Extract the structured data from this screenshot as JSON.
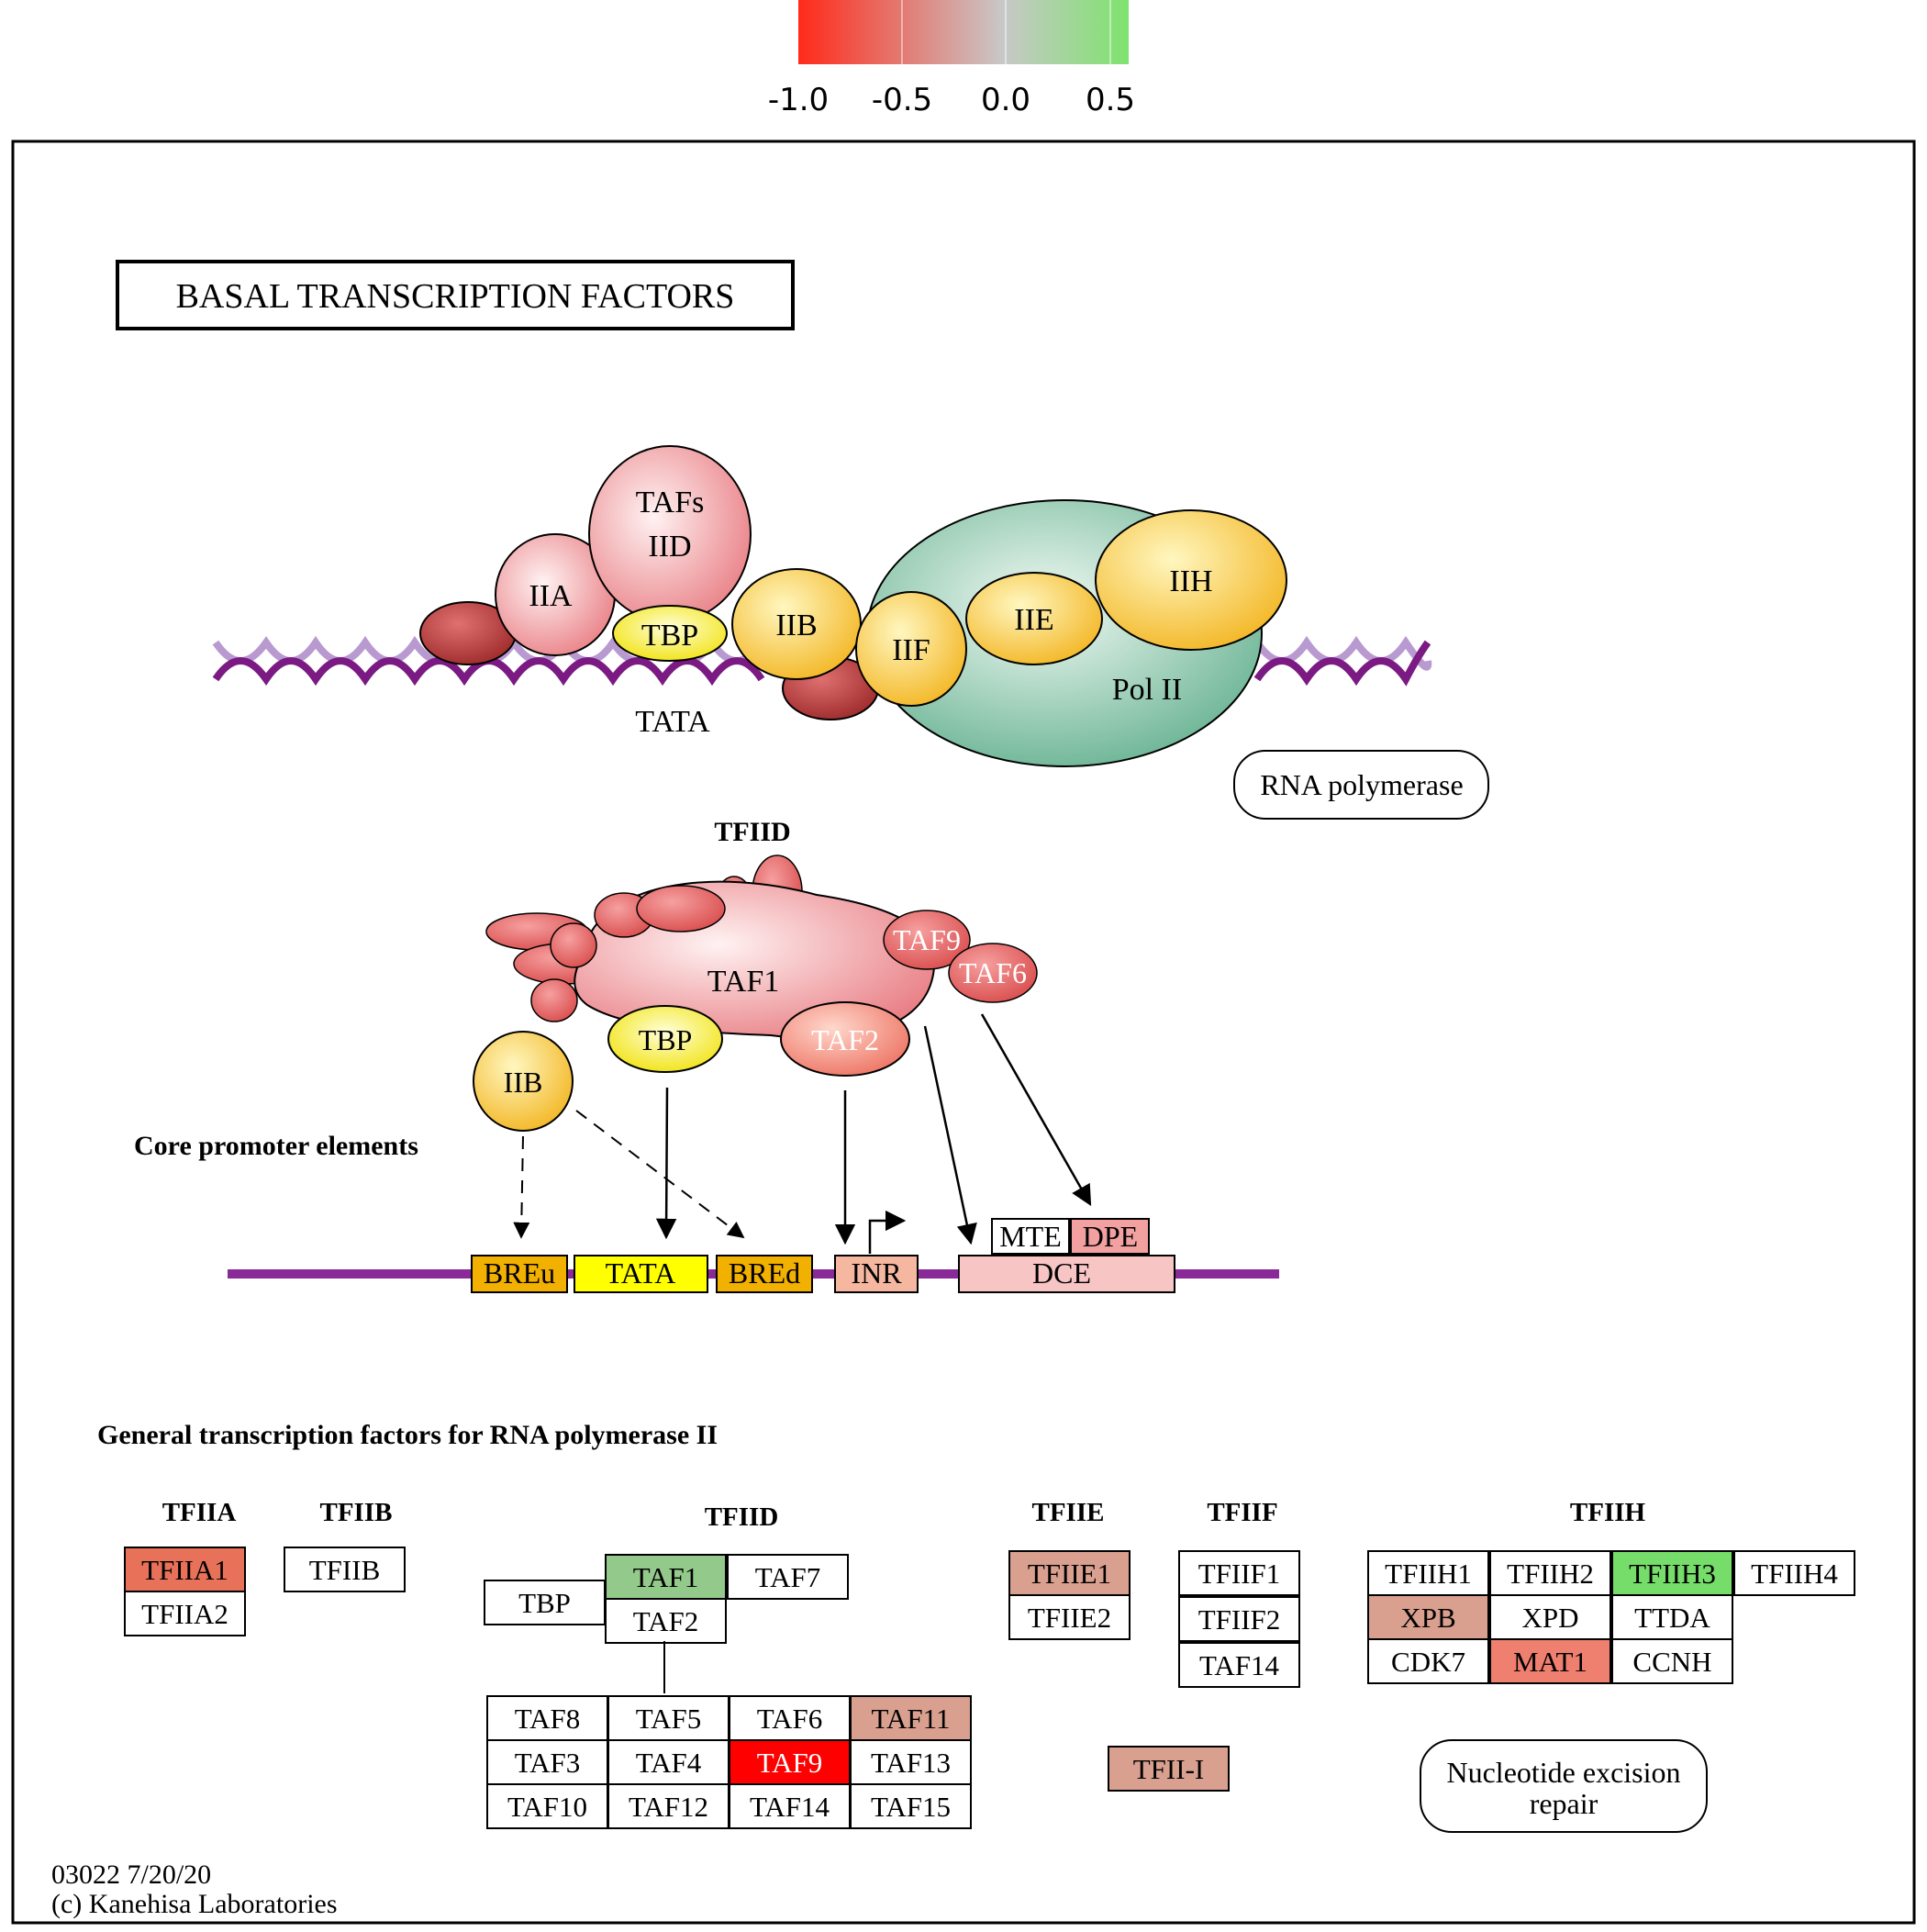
{
  "legend": {
    "ticks": [
      "-1.0",
      "-0.5",
      "0.0",
      "0.5"
    ],
    "colors": {
      "neg": "#ff2a1a",
      "mid": "#c8c8c8",
      "pos": "#7ee36e"
    }
  },
  "title": "BASAL  TRANSCRIPTION  FACTORS",
  "top_complex": {
    "tafs": [
      "TAFs",
      "IID"
    ],
    "iia": "IIA",
    "tbp": "TBP",
    "iib": "IIB",
    "iif": "IIF",
    "iie": "IIE",
    "iih": "IIH",
    "polii": "Pol II",
    "tata": "TATA",
    "rnapol": "RNA polymerase"
  },
  "tfiid_diagram": {
    "title": "TFIID",
    "taf1": "TAF1",
    "taf9": "TAF9",
    "taf6": "TAF6",
    "tbp": "TBP",
    "taf2": "TAF2",
    "iib": "IIB",
    "core_label": "Core promoter elements",
    "elements": {
      "breu": "BREu",
      "tata": "TATA",
      "bred": "BREd",
      "inr": "INR",
      "mte": "MTE",
      "dpe": "DPE",
      "dce": "DCE"
    }
  },
  "section_title": "General transcription factors for RNA polymerase II",
  "groups": {
    "tfiia": {
      "title": "TFIIA",
      "boxes": [
        "TFIIA1",
        "TFIIA2"
      ]
    },
    "tfiib": {
      "title": "TFIIB",
      "boxes": [
        "TFIIB"
      ]
    },
    "tfiid": {
      "title": "TFIID",
      "tbp": "TBP",
      "top": [
        "TAF1",
        "TAF7",
        "TAF2"
      ],
      "grid": [
        [
          "TAF8",
          "TAF5",
          "TAF6",
          "TAF11"
        ],
        [
          "TAF3",
          "TAF4",
          "TAF9",
          "TAF13"
        ],
        [
          "TAF10",
          "TAF12",
          "TAF14",
          "TAF15"
        ]
      ]
    },
    "tfiie": {
      "title": "TFIIE",
      "boxes": [
        "TFIIE1",
        "TFIIE2"
      ]
    },
    "tfiif": {
      "title": "TFIIF",
      "boxes": [
        "TFIIF1",
        "TFIIF2",
        "TAF14"
      ]
    },
    "tfiih": {
      "title": "TFIIH",
      "grid": [
        [
          "TFIIH1",
          "TFIIH2",
          "TFIIH3",
          "TFIIH4"
        ],
        [
          "XPB",
          "XPD",
          "TTDA"
        ],
        [
          "CDK7",
          "MAT1",
          "CCNH"
        ]
      ]
    },
    "tfii_i": "TFII-I",
    "ner": [
      "Nucleotide excision",
      "repair"
    ]
  },
  "footer": [
    "03022 7/20/20",
    "(c) Kanehisa Laboratories"
  ]
}
